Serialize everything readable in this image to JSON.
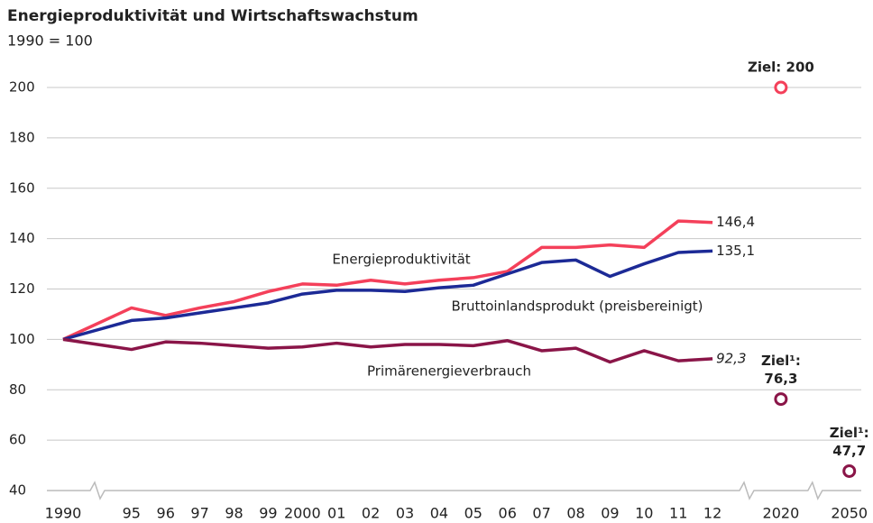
{
  "chart_data": {
    "type": "line",
    "title": "Energieproduktivität und Wirtschaftswachstum",
    "subtitle": "1990 = 100",
    "categories": [
      "1990",
      "95",
      "96",
      "97",
      "98",
      "99",
      "2000",
      "01",
      "02",
      "03",
      "04",
      "05",
      "06",
      "07",
      "08",
      "09",
      "10",
      "11",
      "12",
      "2020",
      "2050"
    ],
    "ylim": [
      40,
      200
    ],
    "yticks": [
      40,
      60,
      80,
      100,
      120,
      140,
      160,
      180,
      200
    ],
    "grid": true,
    "series": [
      {
        "name": "Energieproduktivität",
        "color": "#f4405a",
        "values": [
          100,
          112.5,
          109.5,
          112.5,
          115,
          119,
          122,
          121.5,
          123.5,
          122,
          123.5,
          124.5,
          127,
          136.5,
          136.5,
          137.5,
          136.5,
          147,
          146.4,
          null,
          null
        ],
        "value_labels": [
          null,
          null,
          null,
          null,
          null,
          null,
          null,
          null,
          null,
          null,
          null,
          null,
          null,
          null,
          null,
          null,
          null,
          null,
          "146,4",
          null,
          null
        ]
      },
      {
        "name": "Bruttoinlandsprodukt (preisbereinigt)",
        "color": "#1c2a96",
        "values": [
          100,
          107.5,
          108.5,
          110.5,
          112.5,
          114.5,
          118,
          119.5,
          119.5,
          119,
          120.5,
          121.5,
          126,
          130.5,
          131.5,
          125,
          130,
          134.5,
          135.1,
          null,
          null
        ],
        "value_labels": [
          null,
          null,
          null,
          null,
          null,
          null,
          null,
          null,
          null,
          null,
          null,
          null,
          null,
          null,
          null,
          null,
          null,
          null,
          "135,1",
          null,
          null
        ]
      },
      {
        "name": "Primärenergieverbrauch",
        "color": "#8a1548",
        "values": [
          100,
          96,
          99,
          98.5,
          97.5,
          96.5,
          97,
          98.5,
          97,
          98,
          98,
          97.5,
          99.5,
          95.5,
          96.5,
          91,
          95.5,
          91.5,
          92.3,
          null,
          null
        ],
        "value_labels": [
          null,
          null,
          null,
          null,
          null,
          null,
          null,
          null,
          null,
          null,
          null,
          null,
          null,
          null,
          null,
          null,
          null,
          null,
          "92,3",
          null,
          null
        ]
      }
    ],
    "targets": [
      {
        "category": "2020",
        "value": 200,
        "color": "#f4405a",
        "lines": [
          "Ziel: 200"
        ]
      },
      {
        "category": "2020",
        "value": 76.3,
        "color": "#8a1548",
        "lines": [
          "Ziel¹:",
          "76,3"
        ]
      },
      {
        "category": "2050",
        "value": 47.7,
        "color": "#8a1548",
        "lines": [
          "Ziel¹:",
          "47,7"
        ]
      }
    ]
  }
}
